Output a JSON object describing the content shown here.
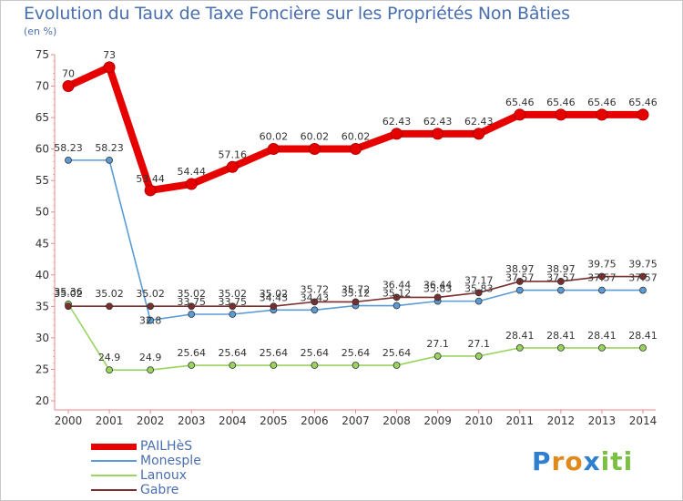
{
  "chart_data": {
    "type": "line",
    "title": "Evolution du Taux de Taxe Foncière sur les Propriétés Non Bâties",
    "unit_label": "(en %)",
    "x": [
      "2000",
      "2001",
      "2002",
      "2003",
      "2004",
      "2005",
      "2006",
      "2007",
      "2008",
      "2009",
      "2010",
      "2011",
      "2012",
      "2013",
      "2014"
    ],
    "y_ticks": [
      20,
      25,
      30,
      35,
      40,
      45,
      50,
      55,
      60,
      65,
      70,
      75
    ],
    "ylim": [
      20,
      75
    ],
    "series": [
      {
        "name": "PAILHèS",
        "color": "#e60000",
        "values": [
          70,
          73,
          53.44,
          54.44,
          57.16,
          60.02,
          60.02,
          60.02,
          62.43,
          62.43,
          62.43,
          65.46,
          65.46,
          65.46,
          65.46
        ],
        "labels": [
          "70",
          "73",
          "53.44",
          "54.44",
          "57.16",
          "60.02",
          "60.02",
          "60.02",
          "62.43",
          "62.43",
          "62.43",
          "65.46",
          "65.46",
          "65.46",
          "65.46"
        ]
      },
      {
        "name": "Monesple",
        "color": "#5b9bd5",
        "values": [
          58.23,
          58.23,
          32.8,
          33.75,
          33.75,
          34.43,
          34.43,
          35.12,
          35.12,
          35.83,
          35.83,
          37.57,
          37.57,
          37.57,
          37.57
        ],
        "labels": [
          "58.23",
          "58.23",
          "32.8",
          "33.75",
          "33.75",
          "34.43",
          "34.43",
          "35.12",
          "35.12",
          "35.83",
          "35.83",
          "37.57",
          "37.57",
          "37.57",
          "37.57"
        ]
      },
      {
        "name": "Lanoux",
        "color": "#99d45f",
        "values": [
          35.36,
          24.9,
          24.9,
          25.64,
          25.64,
          25.64,
          25.64,
          25.64,
          25.64,
          27.1,
          27.1,
          28.41,
          28.41,
          28.41,
          28.41
        ],
        "labels": [
          "35.36",
          "24.9",
          "24.9",
          "25.64",
          "25.64",
          "25.64",
          "25.64",
          "25.64",
          "25.64",
          "27.1",
          "27.1",
          "28.41",
          "28.41",
          "28.41",
          "28.41"
        ]
      },
      {
        "name": "Gabre",
        "color": "#7a2e2e",
        "values": [
          35.02,
          35.02,
          35.02,
          35.02,
          35.02,
          35.02,
          35.72,
          35.72,
          36.44,
          36.44,
          37.17,
          38.97,
          38.97,
          39.75,
          39.75
        ],
        "labels": [
          "35.02",
          "35.02",
          "35.02",
          "35.02",
          "35.02",
          "35.02",
          "35.72",
          "35.72",
          "36.44",
          "36.44",
          "37.17",
          "38.97",
          "38.97",
          "39.75",
          "39.75"
        ]
      }
    ],
    "legend_position": "bottom-left",
    "grid": false
  },
  "logo": {
    "letters": [
      "P",
      "r",
      "o",
      "x",
      "i",
      "t",
      "i"
    ],
    "colors": [
      "#2f7fd0",
      "#e08a1e",
      "#e08a1e",
      "#2f7fd0",
      "#7ac143",
      "#7ac143",
      "#7ac143"
    ]
  }
}
